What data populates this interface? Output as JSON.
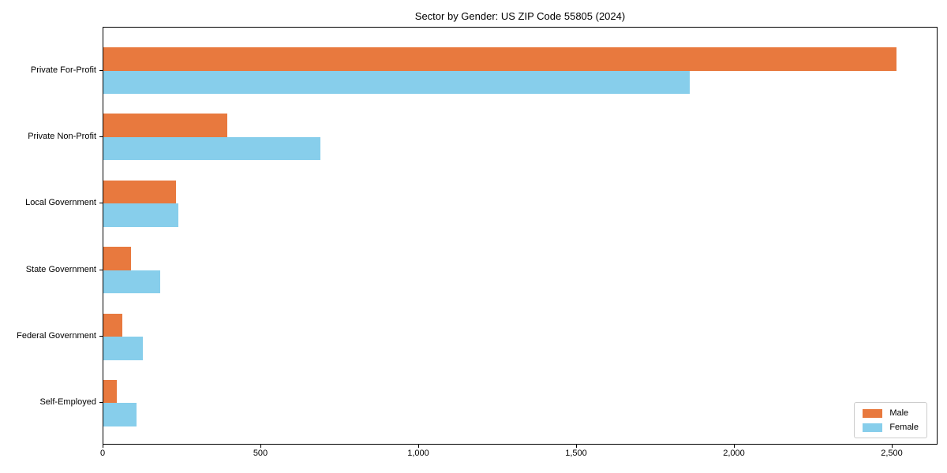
{
  "chart_data": {
    "type": "bar",
    "orientation": "horizontal",
    "title": "Sector by Gender: US ZIP Code 55805 (2024)",
    "categories": [
      "Private For-Profit",
      "Private Non-Profit",
      "Local Government",
      "State Government",
      "Federal Government",
      "Self-Employed"
    ],
    "series": [
      {
        "name": "Male",
        "color": "#e8793e",
        "values": [
          2512,
          392,
          230,
          88,
          60,
          43
        ]
      },
      {
        "name": "Female",
        "color": "#87ceeb",
        "values": [
          1857,
          687,
          237,
          180,
          125,
          105
        ]
      }
    ],
    "xlabel": "",
    "ylabel": "",
    "xlim": [
      0,
      2645
    ],
    "xticks": [
      {
        "value": 0,
        "label": "0"
      },
      {
        "value": 500,
        "label": "500"
      },
      {
        "value": 1000,
        "label": "1,000"
      },
      {
        "value": 1500,
        "label": "1,500"
      },
      {
        "value": 2000,
        "label": "2,000"
      },
      {
        "value": 2500,
        "label": "2,500"
      }
    ],
    "grid": false,
    "legend_position": "lower right"
  }
}
